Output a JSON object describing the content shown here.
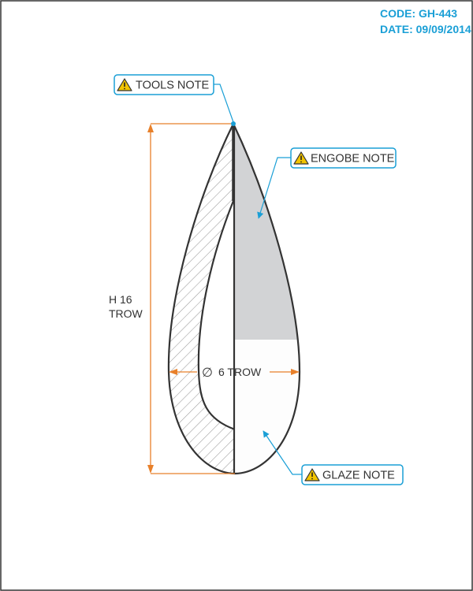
{
  "header": {
    "code": "CODE: GH-443",
    "date": "DATE: 09/09/2014"
  },
  "callouts": {
    "tools": "TOOLS NOTE",
    "engobe": "ENGOBE NOTE",
    "glaze": "GLAZE NOTE"
  },
  "dimensions": {
    "height_line1": "H 16",
    "height_line2": "TROW",
    "diameter_symbol": "∅",
    "diameter": "6 TROW"
  },
  "colors": {
    "accent_blue": "#1a9fd6",
    "dimension_orange": "#e8802a",
    "outline": "#333333",
    "engobe_fill": "#d2d3d5",
    "glaze_fill": "#fdfdfd",
    "warning_yellow": "#f2c400"
  }
}
